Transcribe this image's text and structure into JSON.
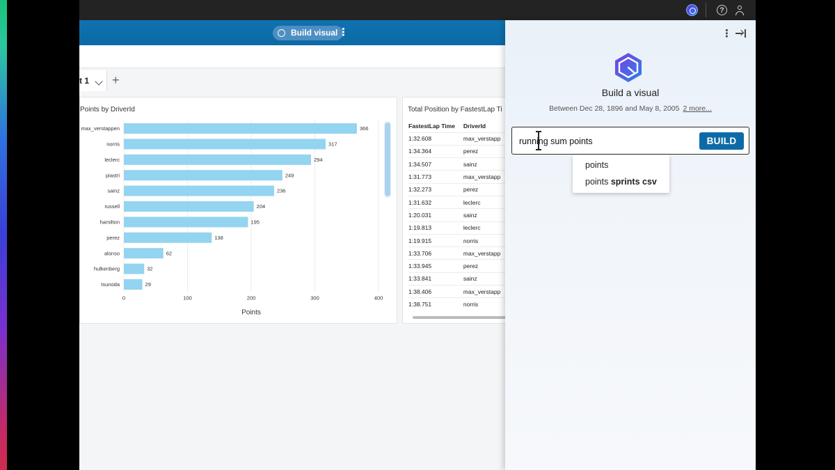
{
  "top_bar": {
    "icons": [
      "q-assistant-icon",
      "help-icon",
      "user-icon"
    ],
    "help_glyph": "?"
  },
  "toolbar": {
    "build_visual_label": "Build visual",
    "kebab_glyph": "⋮"
  },
  "sheet": {
    "tab_label": "t 1",
    "add_glyph": "+"
  },
  "bar_chart_title": "Points by DriverId",
  "table_chart_title": "Total Position by FastestLap Ti",
  "chart_data": {
    "type": "bar",
    "orientation": "horizontal",
    "categories": [
      "max_verstappen",
      "norris",
      "leclerc",
      "piastri",
      "sainz",
      "russell",
      "hamilton",
      "perez",
      "alonso",
      "hulkenberg",
      "tsunoda"
    ],
    "values": [
      366,
      317,
      294,
      249,
      236,
      204,
      195,
      138,
      62,
      32,
      29
    ],
    "value_labels": [
      "366",
      "317",
      "294",
      "249",
      "236",
      "204",
      "195",
      "138",
      "62",
      "32",
      "29"
    ],
    "xlabel": "Points",
    "ylabel": "",
    "xlim": [
      0,
      400
    ],
    "xticks": [
      "0",
      "100",
      "200",
      "300",
      "400"
    ],
    "grid": true,
    "bar_color": "#93d4f0"
  },
  "table": {
    "columns": [
      "FastestLap Time",
      "DriverId"
    ],
    "rows": [
      [
        "1:32.608",
        "max_verstapp"
      ],
      [
        "1:34.364",
        "perez"
      ],
      [
        "1:34.507",
        "sainz"
      ],
      [
        "1:31.773",
        "max_verstapp"
      ],
      [
        "1:32.273",
        "perez"
      ],
      [
        "1:31.632",
        "leclerc"
      ],
      [
        "1:20.031",
        "sainz"
      ],
      [
        "1:19.813",
        "leclerc"
      ],
      [
        "1:19.915",
        "norris"
      ],
      [
        "1:33.706",
        "max_verstapp"
      ],
      [
        "1:33.945",
        "perez"
      ],
      [
        "1:33.841",
        "sainz"
      ],
      [
        "1:38.406",
        "max_verstapp"
      ],
      [
        "1:38.751",
        "norris"
      ]
    ]
  },
  "panel": {
    "title": "Build a visual",
    "date_range": "Between Dec 28, 1896 and May 8, 2005",
    "more_link": "2 more...",
    "prompt_value": "running sum points",
    "build_label": "BUILD",
    "kebab_glyph": "⋮",
    "suggestions": [
      {
        "plain": "points",
        "bold": ""
      },
      {
        "plain": "points ",
        "bold": "sprints csv"
      }
    ]
  },
  "colors": {
    "accent_blue": "#0d6aa7",
    "bar_fill": "#93d4f0",
    "top_bar": "#232323"
  }
}
